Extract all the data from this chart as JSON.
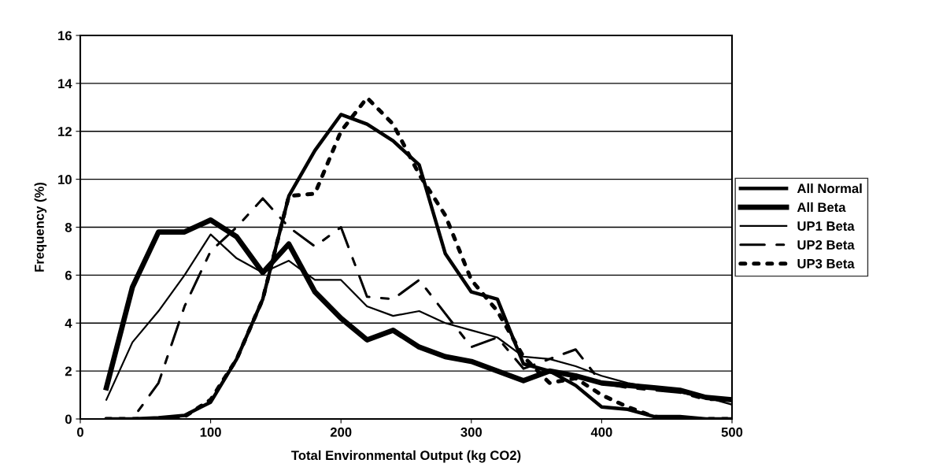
{
  "chart_data": {
    "type": "line",
    "xlabel": "Total Environmental Output (kg CO2)",
    "ylabel": "Frequency (%)",
    "x": [
      20,
      40,
      60,
      80,
      100,
      120,
      140,
      160,
      180,
      200,
      220,
      240,
      260,
      280,
      300,
      320,
      340,
      360,
      380,
      400,
      420,
      440,
      460,
      480,
      500
    ],
    "xlim": [
      0,
      500
    ],
    "xticks": [
      0,
      100,
      200,
      300,
      400,
      500
    ],
    "ylim": [
      0,
      16
    ],
    "yticks": [
      0,
      2,
      4,
      6,
      8,
      10,
      12,
      14,
      16
    ],
    "grid": "y",
    "legend": "right",
    "marker": "none",
    "series": [
      {
        "name": "All Normal",
        "color": "#000000",
        "line_style": "solid",
        "values": [
          0,
          0,
          0.05,
          0.15,
          0.7,
          2.5,
          5,
          9.3,
          11.2,
          12.7,
          12.3,
          11.6,
          10.6,
          6.9,
          5.3,
          5.0,
          2.3,
          2.0,
          1.4,
          0.5,
          0.4,
          0.1,
          0.1,
          0,
          0
        ]
      },
      {
        "name": "All Beta",
        "color": "#000000",
        "line_style": "solid",
        "values": [
          1.3,
          5.5,
          7.8,
          7.8,
          8.3,
          7.6,
          6.1,
          7.3,
          5.3,
          4.2,
          3.3,
          3.7,
          3.0,
          2.6,
          2.4,
          2.0,
          1.6,
          2.0,
          1.8,
          1.5,
          1.4,
          1.3,
          1.2,
          0.9,
          0.8
        ]
      },
      {
        "name": "UP1 Beta",
        "color": "#000000",
        "line_style": "solid",
        "values": [
          0.8,
          3.2,
          4.5,
          6.0,
          7.7,
          6.7,
          6.1,
          6.6,
          5.8,
          5.8,
          4.7,
          4.3,
          4.5,
          4.0,
          3.7,
          3.4,
          2.6,
          2.5,
          2.2,
          1.8,
          1.5,
          1.3,
          1.1,
          0.9,
          0.6
        ]
      },
      {
        "name": "UP2 Beta",
        "color": "#000000",
        "line_style": "dashed",
        "values": [
          0,
          0,
          1.5,
          4.7,
          7.0,
          8.0,
          9.2,
          8.0,
          7.2,
          8.0,
          5.1,
          5.0,
          5.8,
          4.4,
          3.0,
          3.4,
          2.1,
          2.5,
          2.9,
          1.5,
          1.3,
          1.2,
          1.1,
          0.8,
          0.8
        ]
      },
      {
        "name": "UP3 Beta",
        "color": "#000000",
        "line_style": "dotted",
        "values": [
          0,
          0,
          0,
          0.1,
          0.8,
          2.5,
          5,
          9.3,
          9.4,
          12.0,
          13.4,
          12.3,
          10.2,
          8.5,
          5.8,
          4.5,
          2.6,
          1.5,
          1.7,
          1.0,
          0.5,
          0.1,
          0,
          0,
          0
        ]
      }
    ]
  }
}
